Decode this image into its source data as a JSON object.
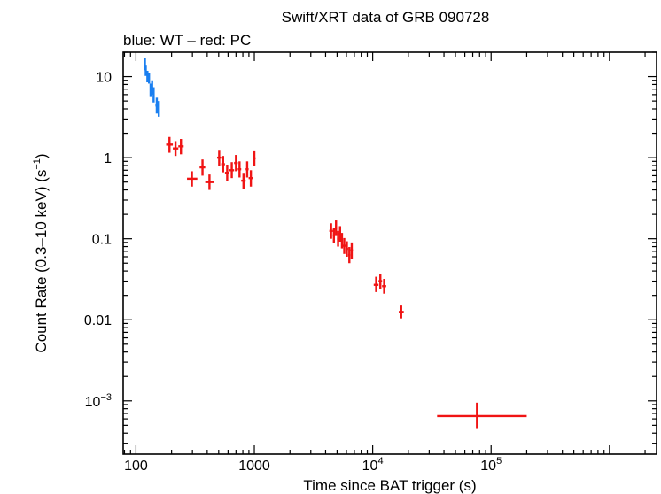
{
  "chart_data": {
    "type": "scatter",
    "title": "Swift/XRT data of GRB 090728",
    "subtitle": "blue: WT – red: PC",
    "xlabel": "Time since BAT trigger (s)",
    "ylabel": "Count Rate (0.3–10 keV) (s",
    "ylabel_sup": "−1",
    "ylabel_end": ")",
    "xscale": "log",
    "yscale": "log",
    "xlim": [
      78,
      2500000
    ],
    "ylim": [
      0.00022,
      20
    ],
    "x_ticks": [
      {
        "value": 100,
        "label": "100"
      },
      {
        "value": 1000,
        "label": "1000"
      },
      {
        "value": 10000,
        "label": "10",
        "sup": "4"
      },
      {
        "value": 100000,
        "label": "10",
        "sup": "5"
      }
    ],
    "y_ticks": [
      {
        "value": 10,
        "label": "10"
      },
      {
        "value": 1,
        "label": "1"
      },
      {
        "value": 0.1,
        "label": "0.1"
      },
      {
        "value": 0.01,
        "label": "0.01"
      },
      {
        "value": 0.001,
        "label": "10",
        "sup": "−3"
      }
    ],
    "series": [
      {
        "color": "#1a7ff0",
        "points": [
          {
            "x": 119,
            "y": 14.2,
            "xlo": 118,
            "xhi": 120,
            "ylo": 12.0,
            "yhi": 17.0
          },
          {
            "x": 121,
            "y": 12.0,
            "xlo": 120,
            "xhi": 122,
            "ylo": 10.2,
            "yhi": 14.0
          },
          {
            "x": 125,
            "y": 10.0,
            "xlo": 124,
            "xhi": 126,
            "ylo": 8.5,
            "yhi": 11.8
          },
          {
            "x": 129,
            "y": 9.6,
            "xlo": 128,
            "xhi": 130,
            "ylo": 8.2,
            "yhi": 11.2
          },
          {
            "x": 133,
            "y": 6.8,
            "xlo": 131,
            "xhi": 135,
            "ylo": 5.6,
            "yhi": 8.2
          },
          {
            "x": 137,
            "y": 7.4,
            "xlo": 135,
            "xhi": 139,
            "ylo": 6.0,
            "yhi": 9.0
          },
          {
            "x": 141,
            "y": 6.0,
            "xlo": 139,
            "xhi": 143,
            "ylo": 4.8,
            "yhi": 7.4
          },
          {
            "x": 150,
            "y": 4.4,
            "xlo": 146,
            "xhi": 154,
            "ylo": 3.5,
            "yhi": 5.5
          },
          {
            "x": 156,
            "y": 4.0,
            "xlo": 154,
            "xhi": 158,
            "ylo": 3.2,
            "yhi": 5.0
          }
        ]
      },
      {
        "color": "#f01414",
        "points": [
          {
            "x": 192,
            "y": 1.45,
            "xlo": 180,
            "xhi": 205,
            "ylo": 1.15,
            "yhi": 1.8
          },
          {
            "x": 216,
            "y": 1.3,
            "xlo": 205,
            "xhi": 228,
            "ylo": 1.05,
            "yhi": 1.6
          },
          {
            "x": 240,
            "y": 1.38,
            "xlo": 228,
            "xhi": 253,
            "ylo": 1.1,
            "yhi": 1.7
          },
          {
            "x": 297,
            "y": 0.55,
            "xlo": 270,
            "xhi": 330,
            "ylo": 0.44,
            "yhi": 0.68
          },
          {
            "x": 365,
            "y": 0.76,
            "xlo": 345,
            "xhi": 385,
            "ylo": 0.6,
            "yhi": 0.95
          },
          {
            "x": 418,
            "y": 0.5,
            "xlo": 385,
            "xhi": 455,
            "ylo": 0.4,
            "yhi": 0.62
          },
          {
            "x": 505,
            "y": 1.0,
            "xlo": 485,
            "xhi": 525,
            "ylo": 0.8,
            "yhi": 1.25
          },
          {
            "x": 545,
            "y": 0.83,
            "xlo": 525,
            "xhi": 565,
            "ylo": 0.66,
            "yhi": 1.05
          },
          {
            "x": 590,
            "y": 0.65,
            "xlo": 565,
            "xhi": 615,
            "ylo": 0.52,
            "yhi": 0.82
          },
          {
            "x": 645,
            "y": 0.7,
            "xlo": 615,
            "xhi": 675,
            "ylo": 0.56,
            "yhi": 0.88
          },
          {
            "x": 700,
            "y": 0.86,
            "xlo": 675,
            "xhi": 725,
            "ylo": 0.68,
            "yhi": 1.08
          },
          {
            "x": 750,
            "y": 0.72,
            "xlo": 725,
            "xhi": 775,
            "ylo": 0.57,
            "yhi": 0.9
          },
          {
            "x": 810,
            "y": 0.52,
            "xlo": 775,
            "xhi": 845,
            "ylo": 0.41,
            "yhi": 0.65
          },
          {
            "x": 870,
            "y": 0.72,
            "xlo": 845,
            "xhi": 895,
            "ylo": 0.57,
            "yhi": 0.9
          },
          {
            "x": 935,
            "y": 0.56,
            "xlo": 895,
            "xhi": 975,
            "ylo": 0.44,
            "yhi": 0.7
          },
          {
            "x": 1000,
            "y": 0.98,
            "xlo": 975,
            "xhi": 1025,
            "ylo": 0.78,
            "yhi": 1.23
          },
          {
            "x": 4450,
            "y": 0.125,
            "xlo": 4300,
            "xhi": 4600,
            "ylo": 0.1,
            "yhi": 0.155
          },
          {
            "x": 4700,
            "y": 0.11,
            "xlo": 4600,
            "xhi": 4800,
            "ylo": 0.088,
            "yhi": 0.137
          },
          {
            "x": 4900,
            "y": 0.135,
            "xlo": 4800,
            "xhi": 5000,
            "ylo": 0.108,
            "yhi": 0.168
          },
          {
            "x": 5100,
            "y": 0.1,
            "xlo": 5000,
            "xhi": 5200,
            "ylo": 0.08,
            "yhi": 0.125
          },
          {
            "x": 5300,
            "y": 0.115,
            "xlo": 5200,
            "xhi": 5400,
            "ylo": 0.092,
            "yhi": 0.143
          },
          {
            "x": 5500,
            "y": 0.095,
            "xlo": 5400,
            "xhi": 5600,
            "ylo": 0.076,
            "yhi": 0.118
          },
          {
            "x": 5750,
            "y": 0.082,
            "xlo": 5600,
            "xhi": 5900,
            "ylo": 0.065,
            "yhi": 0.102
          },
          {
            "x": 6050,
            "y": 0.075,
            "xlo": 5900,
            "xhi": 6200,
            "ylo": 0.06,
            "yhi": 0.093
          },
          {
            "x": 6350,
            "y": 0.063,
            "xlo": 6200,
            "xhi": 6500,
            "ylo": 0.05,
            "yhi": 0.079
          },
          {
            "x": 6650,
            "y": 0.072,
            "xlo": 6500,
            "xhi": 6800,
            "ylo": 0.057,
            "yhi": 0.09
          },
          {
            "x": 10700,
            "y": 0.027,
            "xlo": 10200,
            "xhi": 11200,
            "ylo": 0.022,
            "yhi": 0.034
          },
          {
            "x": 11600,
            "y": 0.03,
            "xlo": 11200,
            "xhi": 12000,
            "ylo": 0.024,
            "yhi": 0.037
          },
          {
            "x": 12500,
            "y": 0.026,
            "xlo": 12000,
            "xhi": 13000,
            "ylo": 0.021,
            "yhi": 0.032
          },
          {
            "x": 17400,
            "y": 0.0125,
            "xlo": 16600,
            "xhi": 18300,
            "ylo": 0.0104,
            "yhi": 0.015
          },
          {
            "x": 76000,
            "y": 0.00065,
            "xlo": 35000,
            "xhi": 200000,
            "ylo": 0.00045,
            "yhi": 0.00095
          }
        ]
      }
    ]
  }
}
